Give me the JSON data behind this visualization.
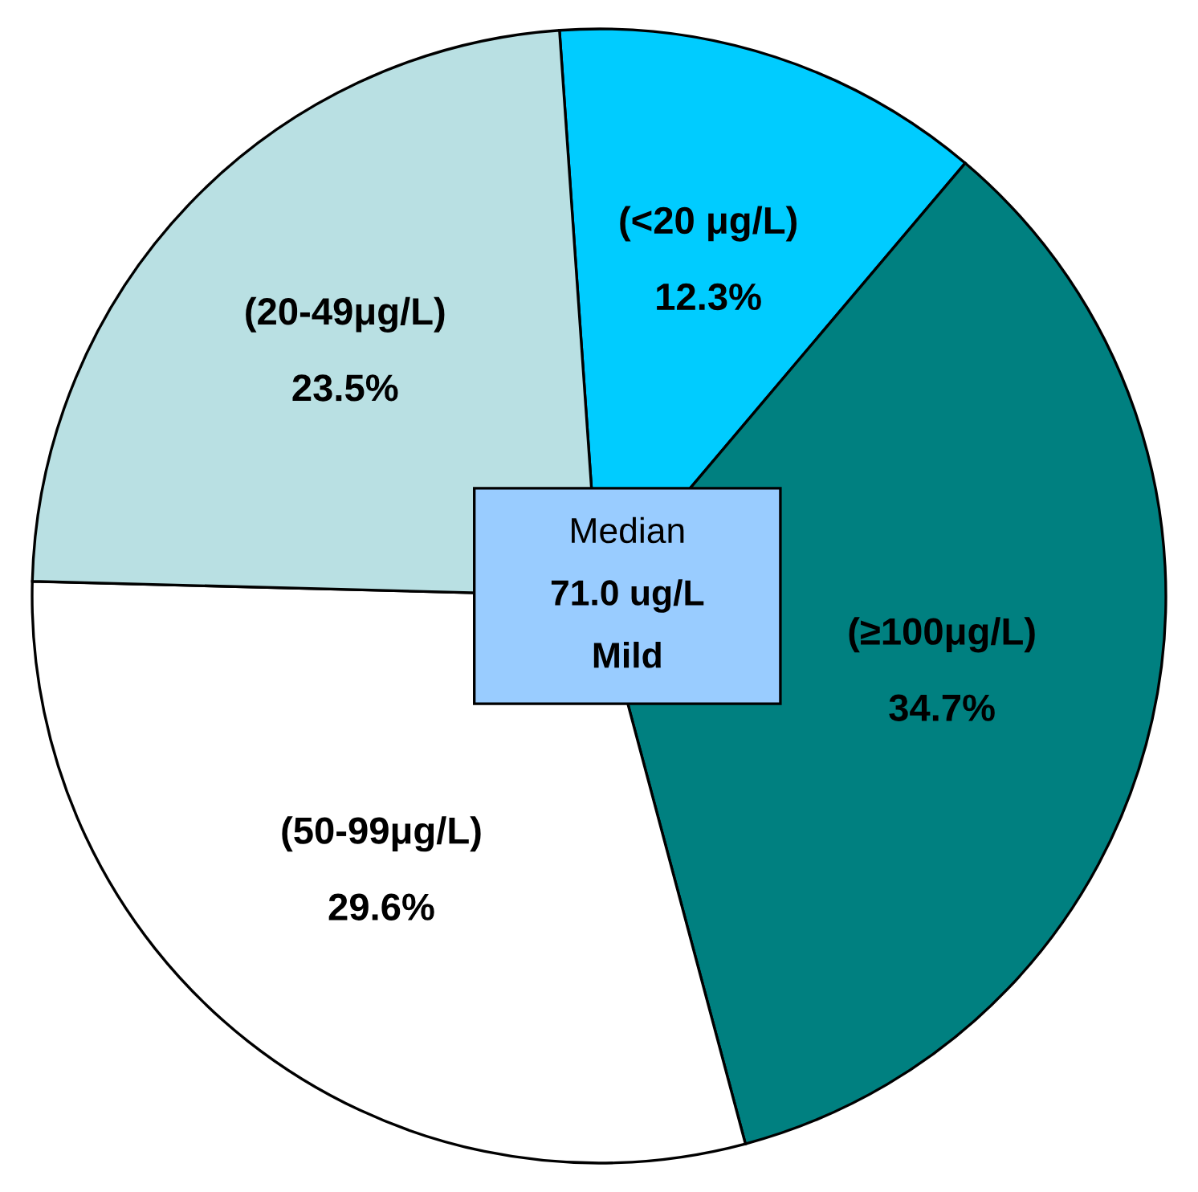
{
  "chart_data": {
    "type": "pie",
    "categories": [
      "(<20 μg/L)",
      "(≥100μg/L)",
      "(50-99μg/L)",
      "(20-49μg/L)"
    ],
    "values": [
      12.3,
      34.7,
      29.6,
      23.5
    ],
    "colors": [
      "#00ccff",
      "#008080",
      "#ffffff",
      "#b9e0e3"
    ],
    "value_labels": [
      "12.3%",
      "34.7%",
      "29.6%",
      "23.5%"
    ],
    "annotations": [
      "Median\n71.0 ug/L\nMild"
    ]
  }
}
